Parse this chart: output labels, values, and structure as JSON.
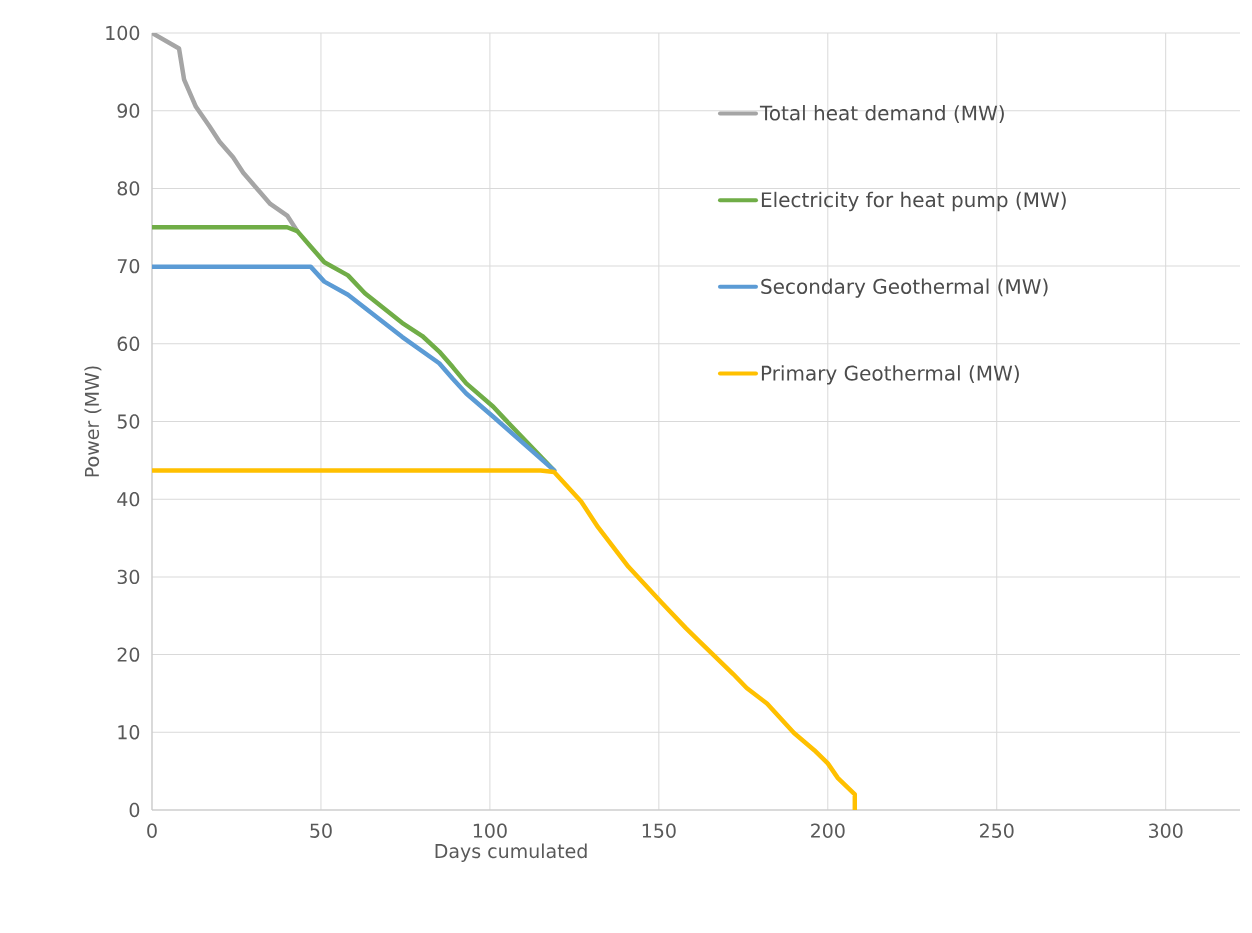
{
  "chart_data": {
    "type": "line",
    "xlabel": "Days cumulated",
    "ylabel": "Power (MW)",
    "xlim": [
      0,
      322
    ],
    "ylim": [
      0,
      100
    ],
    "xticks": [
      0,
      50,
      100,
      150,
      200,
      250,
      300
    ],
    "yticks": [
      0,
      10,
      20,
      30,
      40,
      50,
      60,
      70,
      80,
      90,
      100
    ],
    "grid": true,
    "legend": "top right",
    "series": [
      {
        "name": "Total heat demand (MW)",
        "color": "#a5a5a5",
        "x": [
          0,
          8,
          9.5,
          13,
          17,
          20,
          24,
          27,
          32,
          35,
          40,
          43
        ],
        "values": [
          100,
          98,
          94,
          90.5,
          88,
          86,
          84,
          82,
          79.5,
          78,
          76.5,
          74.5
        ]
      },
      {
        "name": "Electricity for heat pump (MW)",
        "color": "#70ad47",
        "x": [
          0,
          40,
          43,
          47,
          51,
          58,
          63,
          74,
          80,
          85,
          89,
          93,
          101,
          104,
          119
        ],
        "values": [
          75,
          75,
          74.5,
          72.5,
          70.5,
          68.8,
          66.5,
          62.7,
          61,
          59,
          57,
          54.9,
          51.9,
          50.5,
          43.7
        ]
      },
      {
        "name": "Secondary Geothermal (MW)",
        "color": "#5b9bd5",
        "x": [
          0,
          47,
          51,
          58,
          74,
          85,
          89,
          93,
          101,
          119
        ],
        "values": [
          69.9,
          69.9,
          68,
          66.3,
          60.9,
          57.5,
          55.5,
          53.6,
          50.6,
          43.7
        ]
      },
      {
        "name": "Primary Geothermal (MW)",
        "color": "#ffc000",
        "x": [
          0,
          115,
          119,
          127,
          132,
          141,
          151,
          158,
          162,
          172,
          176,
          182,
          190,
          196,
          200,
          203,
          208,
          208
        ],
        "values": [
          43.7,
          43.7,
          43.5,
          39.7,
          36.4,
          31.3,
          26.6,
          23.4,
          21.7,
          17.5,
          15.7,
          13.7,
          9.9,
          7.7,
          6,
          4.1,
          2,
          0
        ]
      }
    ]
  }
}
